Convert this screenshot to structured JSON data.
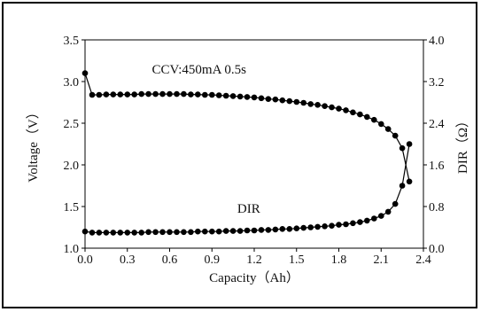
{
  "chart_data": {
    "type": "scatter",
    "title": "",
    "annotations": [
      {
        "text": "CCV:450mA 0.5s",
        "x": 0.6,
        "y": 3.15
      },
      {
        "text": "DIR",
        "x": 1.08,
        "y": 1.48
      }
    ],
    "xlabel": "Capacity（Ah）",
    "ylabel_left": "Voltage（V）",
    "ylabel_right": "DIR（Ω）",
    "xlim": [
      0.0,
      2.4
    ],
    "ylim_left": [
      1.0,
      3.5
    ],
    "ylim_right": [
      0.0,
      4.0
    ],
    "x_ticks": [
      "0.0",
      "0.3",
      "0.6",
      "0.9",
      "1.2",
      "1.5",
      "1.8",
      "2.1",
      "2.4"
    ],
    "y_left_ticks": [
      "1.0",
      "1.5",
      "2.0",
      "2.5",
      "3.0",
      "3.5"
    ],
    "y_right_ticks": [
      "0.0",
      "0.8",
      "1.6",
      "2.4",
      "3.2",
      "4.0"
    ],
    "grid": false,
    "series": [
      {
        "axis": "left",
        "x": [
          0.0,
          0.05,
          0.1,
          0.15,
          0.2,
          0.25,
          0.3,
          0.35,
          0.4,
          0.45,
          0.5,
          0.55,
          0.6,
          0.65,
          0.7,
          0.75,
          0.8,
          0.85,
          0.9,
          0.95,
          1.0,
          1.05,
          1.1,
          1.15,
          1.2,
          1.25,
          1.3,
          1.35,
          1.4,
          1.45,
          1.5,
          1.55,
          1.6,
          1.65,
          1.7,
          1.75,
          1.8,
          1.85,
          1.9,
          1.95,
          2.0,
          2.05,
          2.1,
          2.15,
          2.2,
          2.25,
          2.3
        ],
        "y": [
          3.1,
          2.84,
          2.84,
          2.845,
          2.845,
          2.845,
          2.845,
          2.845,
          2.85,
          2.85,
          2.85,
          2.85,
          2.85,
          2.85,
          2.85,
          2.845,
          2.845,
          2.84,
          2.84,
          2.835,
          2.83,
          2.825,
          2.82,
          2.815,
          2.81,
          2.8,
          2.79,
          2.785,
          2.775,
          2.765,
          2.755,
          2.745,
          2.73,
          2.72,
          2.705,
          2.69,
          2.675,
          2.655,
          2.63,
          2.605,
          2.575,
          2.54,
          2.49,
          2.43,
          2.35,
          2.2,
          1.8
        ]
      },
      {
        "axis": "right",
        "x": [
          0.0,
          0.05,
          0.1,
          0.15,
          0.2,
          0.25,
          0.3,
          0.35,
          0.4,
          0.45,
          0.5,
          0.55,
          0.6,
          0.65,
          0.7,
          0.75,
          0.8,
          0.85,
          0.9,
          0.95,
          1.0,
          1.05,
          1.1,
          1.15,
          1.2,
          1.25,
          1.3,
          1.35,
          1.4,
          1.45,
          1.5,
          1.55,
          1.6,
          1.65,
          1.7,
          1.75,
          1.8,
          1.85,
          1.9,
          1.95,
          2.0,
          2.05,
          2.1,
          2.15,
          2.2,
          2.25,
          2.3
        ],
        "y": [
          0.32,
          0.3,
          0.3,
          0.3,
          0.3,
          0.3,
          0.3,
          0.3,
          0.3,
          0.31,
          0.31,
          0.31,
          0.31,
          0.31,
          0.31,
          0.31,
          0.32,
          0.32,
          0.32,
          0.32,
          0.33,
          0.33,
          0.33,
          0.34,
          0.34,
          0.35,
          0.35,
          0.36,
          0.37,
          0.37,
          0.38,
          0.39,
          0.4,
          0.41,
          0.42,
          0.43,
          0.45,
          0.46,
          0.48,
          0.5,
          0.53,
          0.57,
          0.62,
          0.7,
          0.85,
          1.2,
          2.0
        ]
      }
    ]
  }
}
